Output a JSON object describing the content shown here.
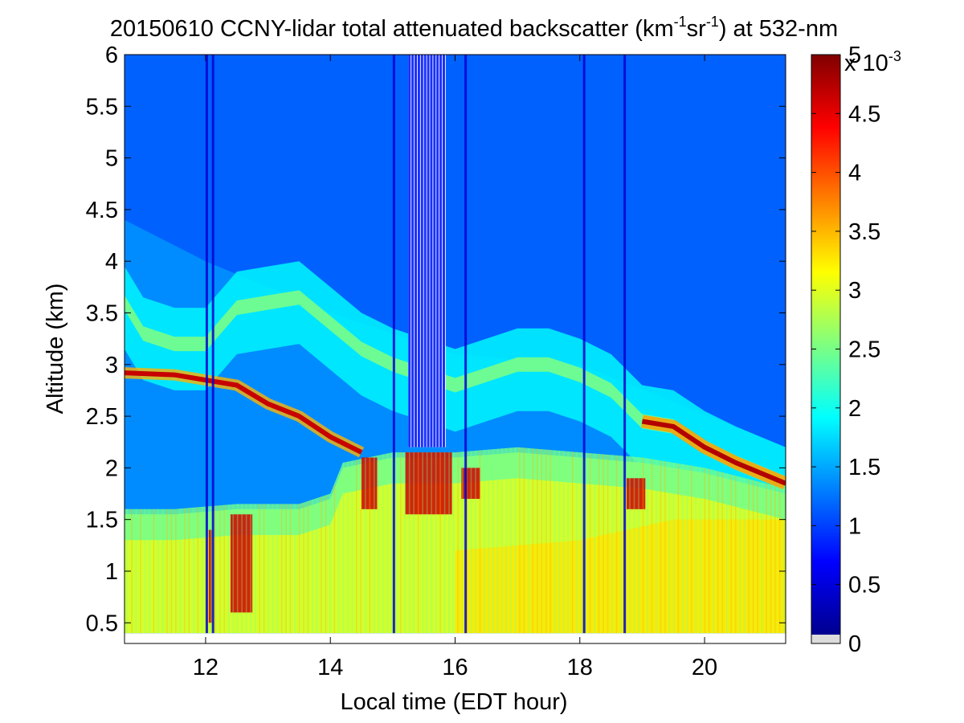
{
  "chart_data": {
    "type": "heatmap",
    "title": {
      "prefix": "20150610 CCNY-lidar total attenuated backscatter (km",
      "sup1": "-1",
      "mid": "sr",
      "sup2": "-1",
      "suffix": ") at 532-nm"
    },
    "xlabel": "Local time (EDT hour)",
    "ylabel": "Altitude (km)",
    "xlim": [
      10.7,
      21.3
    ],
    "ylim": [
      0.3,
      6
    ],
    "data_ymin": 0.4,
    "xticks": [
      12,
      14,
      16,
      18,
      20
    ],
    "xtick_labels": [
      "12",
      "14",
      "16",
      "18",
      "20"
    ],
    "yticks": [
      0.5,
      1,
      1.5,
      2,
      2.5,
      3,
      3.5,
      4,
      4.5,
      5,
      5.5,
      6
    ],
    "ytick_labels": [
      "0.5",
      "1",
      "1.5",
      "2",
      "2.5",
      "3",
      "3.5",
      "4",
      "4.5",
      "5",
      "5.5",
      "6"
    ],
    "colorbar": {
      "min": 0,
      "max": 5,
      "ticks": [
        0,
        0.5,
        1,
        1.5,
        2,
        2.5,
        3,
        3.5,
        4,
        4.5,
        5
      ],
      "tick_labels": [
        "0",
        "0.5",
        "1",
        "1.5",
        "2",
        "2.5",
        "3",
        "3.5",
        "4",
        "4.5",
        "5"
      ],
      "multiplier": {
        "base": "x 10",
        "exp": "-3"
      },
      "colormap": "jet"
    },
    "features": {
      "boundary_layer_top": [
        [
          10.7,
          1.55
        ],
        [
          11.5,
          1.55
        ],
        [
          12.5,
          1.6
        ],
        [
          13.5,
          1.6
        ],
        [
          14.0,
          1.7
        ],
        [
          14.2,
          2.0
        ],
        [
          15.0,
          2.1
        ],
        [
          16.0,
          2.1
        ],
        [
          17.0,
          2.15
        ],
        [
          18.0,
          2.1
        ],
        [
          19.0,
          2.05
        ],
        [
          20.0,
          1.95
        ],
        [
          21.3,
          1.75
        ]
      ],
      "aerosol_layer_lower": [
        [
          10.7,
          2.92
        ],
        [
          11.5,
          2.9
        ],
        [
          12.0,
          2.85
        ],
        [
          12.5,
          2.8
        ],
        [
          13.0,
          2.62
        ],
        [
          13.5,
          2.5
        ],
        [
          14.0,
          2.3
        ],
        [
          14.5,
          2.15
        ]
      ],
      "aerosol_layer_upper": [
        [
          10.7,
          3.6
        ],
        [
          11.0,
          3.3
        ],
        [
          11.5,
          3.2
        ],
        [
          12.0,
          3.2
        ],
        [
          12.5,
          3.55
        ],
        [
          13.0,
          3.6
        ],
        [
          13.5,
          3.65
        ],
        [
          14.0,
          3.4
        ],
        [
          14.5,
          3.15
        ],
        [
          15.0,
          3.0
        ],
        [
          16.0,
          2.8
        ],
        [
          17.0,
          3.0
        ],
        [
          17.5,
          3.0
        ],
        [
          18.0,
          2.9
        ],
        [
          18.5,
          2.75
        ],
        [
          19.0,
          2.45
        ],
        [
          19.5,
          2.4
        ],
        [
          20.0,
          2.2
        ],
        [
          20.5,
          2.05
        ],
        [
          21.3,
          1.85
        ]
      ],
      "dropout_hours": [
        [
          15.25,
          15.85
        ]
      ]
    }
  }
}
